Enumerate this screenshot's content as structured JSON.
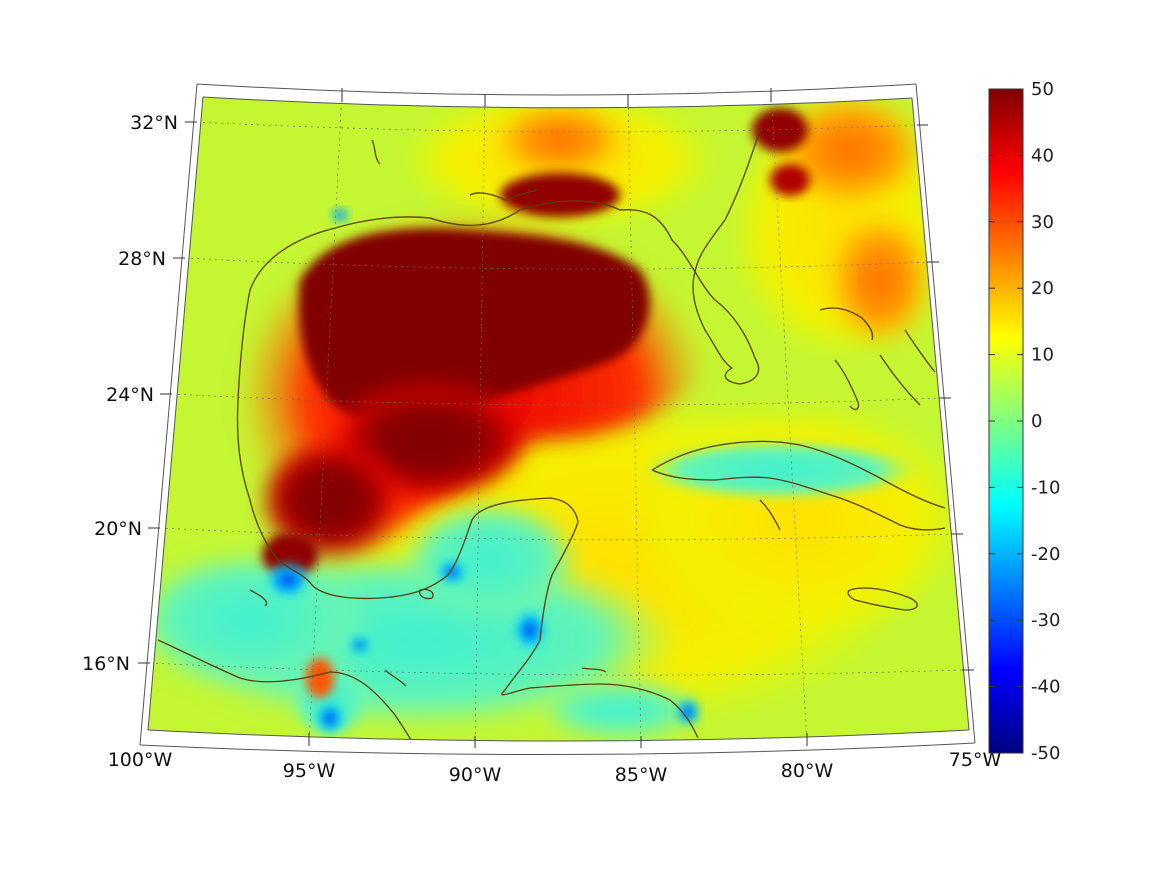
{
  "map": {
    "lat_labels": [
      "32°N",
      "28°N",
      "24°N",
      "20°N",
      "16°N"
    ],
    "lon_labels": [
      "100°W",
      "95°W",
      "90°W",
      "85°W",
      "80°W",
      "75°W"
    ],
    "extent": {
      "lon_min": -100,
      "lon_max": -75,
      "lat_min": 14,
      "lat_max": 33
    },
    "coastline_color": "#5a3e0e"
  },
  "colorbar": {
    "ticks": [
      "50",
      "40",
      "30",
      "20",
      "10",
      "0",
      "-10",
      "-20",
      "-30",
      "-40",
      "-50"
    ],
    "min": -50,
    "max": 50,
    "colormap": "jet"
  }
}
